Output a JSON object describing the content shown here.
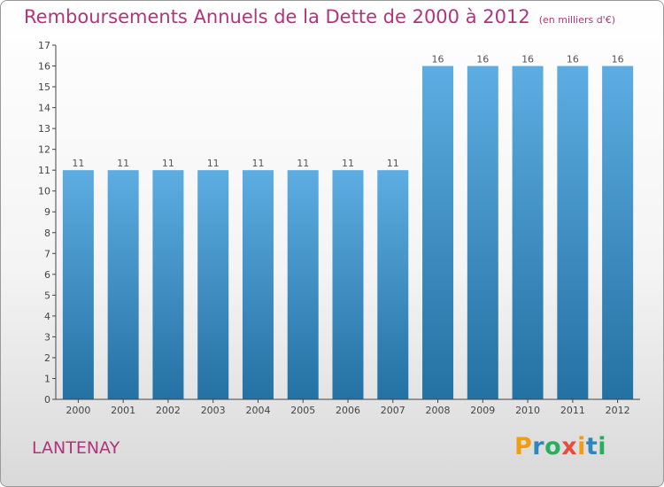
{
  "title": "Remboursements Annuels de la Dette de 2000 à 2012",
  "unit_label": "(en milliers d'€)",
  "commune": "LANTENAY",
  "logo": {
    "text": "Proxiti",
    "letter_colors": [
      "#f39c12",
      "#2e86c1",
      "#27ae60",
      "#e74c3c",
      "#f39c12",
      "#2e86c1",
      "#27ae60"
    ]
  },
  "colors": {
    "title": "#b0357a",
    "bar_light": "#5dade2",
    "bar_dark": "#2471a3"
  },
  "chart_data": {
    "type": "bar",
    "categories": [
      "2000",
      "2001",
      "2002",
      "2003",
      "2004",
      "2005",
      "2006",
      "2007",
      "2008",
      "2009",
      "2010",
      "2011",
      "2012"
    ],
    "values": [
      11,
      11,
      11,
      11,
      11,
      11,
      11,
      11,
      16,
      16,
      16,
      16,
      16
    ],
    "title": "Remboursements Annuels de la Dette de 2000 à 2012",
    "ylim": [
      0,
      17
    ],
    "yticks": [
      0,
      1,
      2,
      3,
      4,
      5,
      6,
      7,
      8,
      9,
      10,
      11,
      12,
      13,
      14,
      15,
      16,
      17
    ],
    "grid": false,
    "legend": "none"
  }
}
